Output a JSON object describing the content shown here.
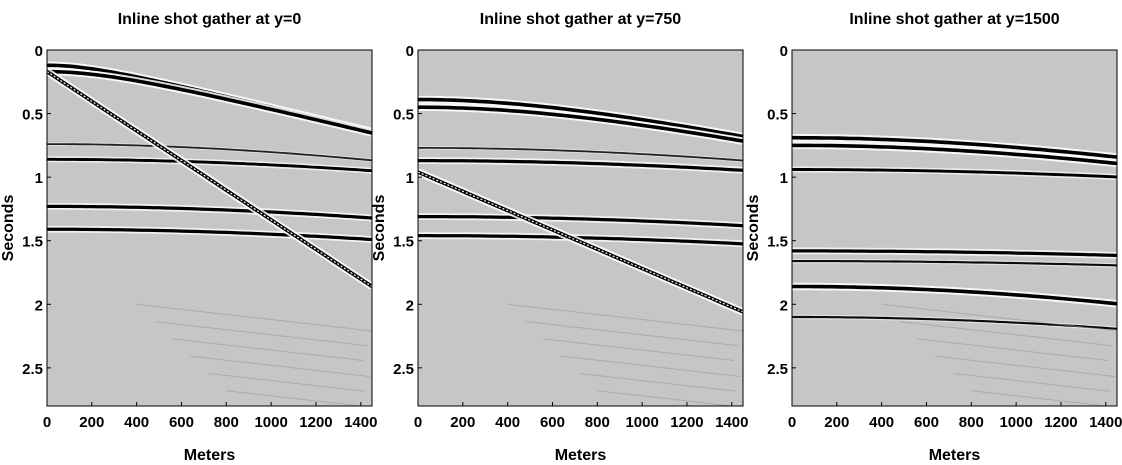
{
  "chart_data": [
    {
      "type": "heatmap",
      "title": "Inline shot gather at y=0",
      "xlabel": "Meters",
      "ylabel": "Seconds",
      "xlim": [
        0,
        1450
      ],
      "ylim": [
        0,
        2.8
      ],
      "xticks": [
        "0",
        "200",
        "400",
        "600",
        "800",
        "1000",
        "1200",
        "1400"
      ],
      "yticks": [
        "0",
        "0.5",
        "1",
        "1.5",
        "2",
        "2.5"
      ],
      "colormap": "grayscale",
      "background_color": "#c6c6c6",
      "events": [
        {
          "kind": "hyperbola",
          "t0": 0.12,
          "velocity": 2300,
          "strength": 1.0
        },
        {
          "kind": "hyperbola",
          "t0": 0.17,
          "velocity": 2300,
          "strength": 1.0
        },
        {
          "kind": "hyperbola",
          "t0": 0.74,
          "velocity": 3200,
          "strength": 0.5
        },
        {
          "kind": "hyperbola",
          "t0": 0.86,
          "velocity": 3600,
          "strength": 0.8
        },
        {
          "kind": "hyperbola",
          "t0": 1.23,
          "velocity": 3000,
          "strength": 0.9
        },
        {
          "kind": "hyperbola",
          "t0": 1.41,
          "velocity": 3000,
          "strength": 0.9
        },
        {
          "kind": "linear",
          "t_start": 0.17,
          "t_end": 1.86,
          "strength": 1.0
        }
      ]
    },
    {
      "type": "heatmap",
      "title": "Inline shot gather at y=750",
      "xlabel": "Meters",
      "ylabel": "Seconds",
      "xlim": [
        0,
        1450
      ],
      "ylim": [
        0,
        2.8
      ],
      "xticks": [
        "0",
        "200",
        "400",
        "600",
        "800",
        "1000",
        "1200",
        "1400"
      ],
      "yticks": [
        "0",
        "0.5",
        "1",
        "1.5",
        "2",
        "2.5"
      ],
      "colormap": "grayscale",
      "background_color": "#c6c6c6",
      "events": [
        {
          "kind": "hyperbola",
          "t0": 0.39,
          "velocity": 2600,
          "strength": 1.0
        },
        {
          "kind": "hyperbola",
          "t0": 0.45,
          "velocity": 2600,
          "strength": 1.0
        },
        {
          "kind": "hyperbola",
          "t0": 0.77,
          "velocity": 3600,
          "strength": 0.5
        },
        {
          "kind": "hyperbola",
          "t0": 0.87,
          "velocity": 3900,
          "strength": 0.9
        },
        {
          "kind": "hyperbola",
          "t0": 1.31,
          "velocity": 3300,
          "strength": 0.9
        },
        {
          "kind": "hyperbola",
          "t0": 1.46,
          "velocity": 3300,
          "strength": 0.9
        },
        {
          "kind": "linear",
          "t_start": 0.96,
          "t_end": 2.06,
          "strength": 1.0
        }
      ]
    },
    {
      "type": "heatmap",
      "title": "Inline shot gather at y=1500",
      "xlabel": "Meters",
      "ylabel": "Seconds",
      "xlim": [
        0,
        1450
      ],
      "ylim": [
        0,
        2.8
      ],
      "xticks": [
        "0",
        "200",
        "400",
        "600",
        "800",
        "1000",
        "1200",
        "1400"
      ],
      "yticks": [
        "0",
        "0.5",
        "1",
        "1.5",
        "2",
        "2.5"
      ],
      "colormap": "grayscale",
      "background_color": "#c6c6c6",
      "events": [
        {
          "kind": "hyperbola",
          "t0": 0.69,
          "velocity": 3000,
          "strength": 1.0
        },
        {
          "kind": "hyperbola",
          "t0": 0.75,
          "velocity": 3000,
          "strength": 1.0
        },
        {
          "kind": "hyperbola",
          "t0": 0.94,
          "velocity": 4300,
          "strength": 0.8
        },
        {
          "kind": "hyperbola",
          "t0": 1.58,
          "velocity": 4300,
          "strength": 0.9
        },
        {
          "kind": "hyperbola",
          "t0": 1.66,
          "velocity": 4300,
          "strength": 0.6
        },
        {
          "kind": "hyperbola",
          "t0": 1.86,
          "velocity": 2000,
          "strength": 1.0
        },
        {
          "kind": "hyperbola",
          "t0": 2.1,
          "velocity": 2300,
          "strength": 0.6
        }
      ]
    }
  ]
}
